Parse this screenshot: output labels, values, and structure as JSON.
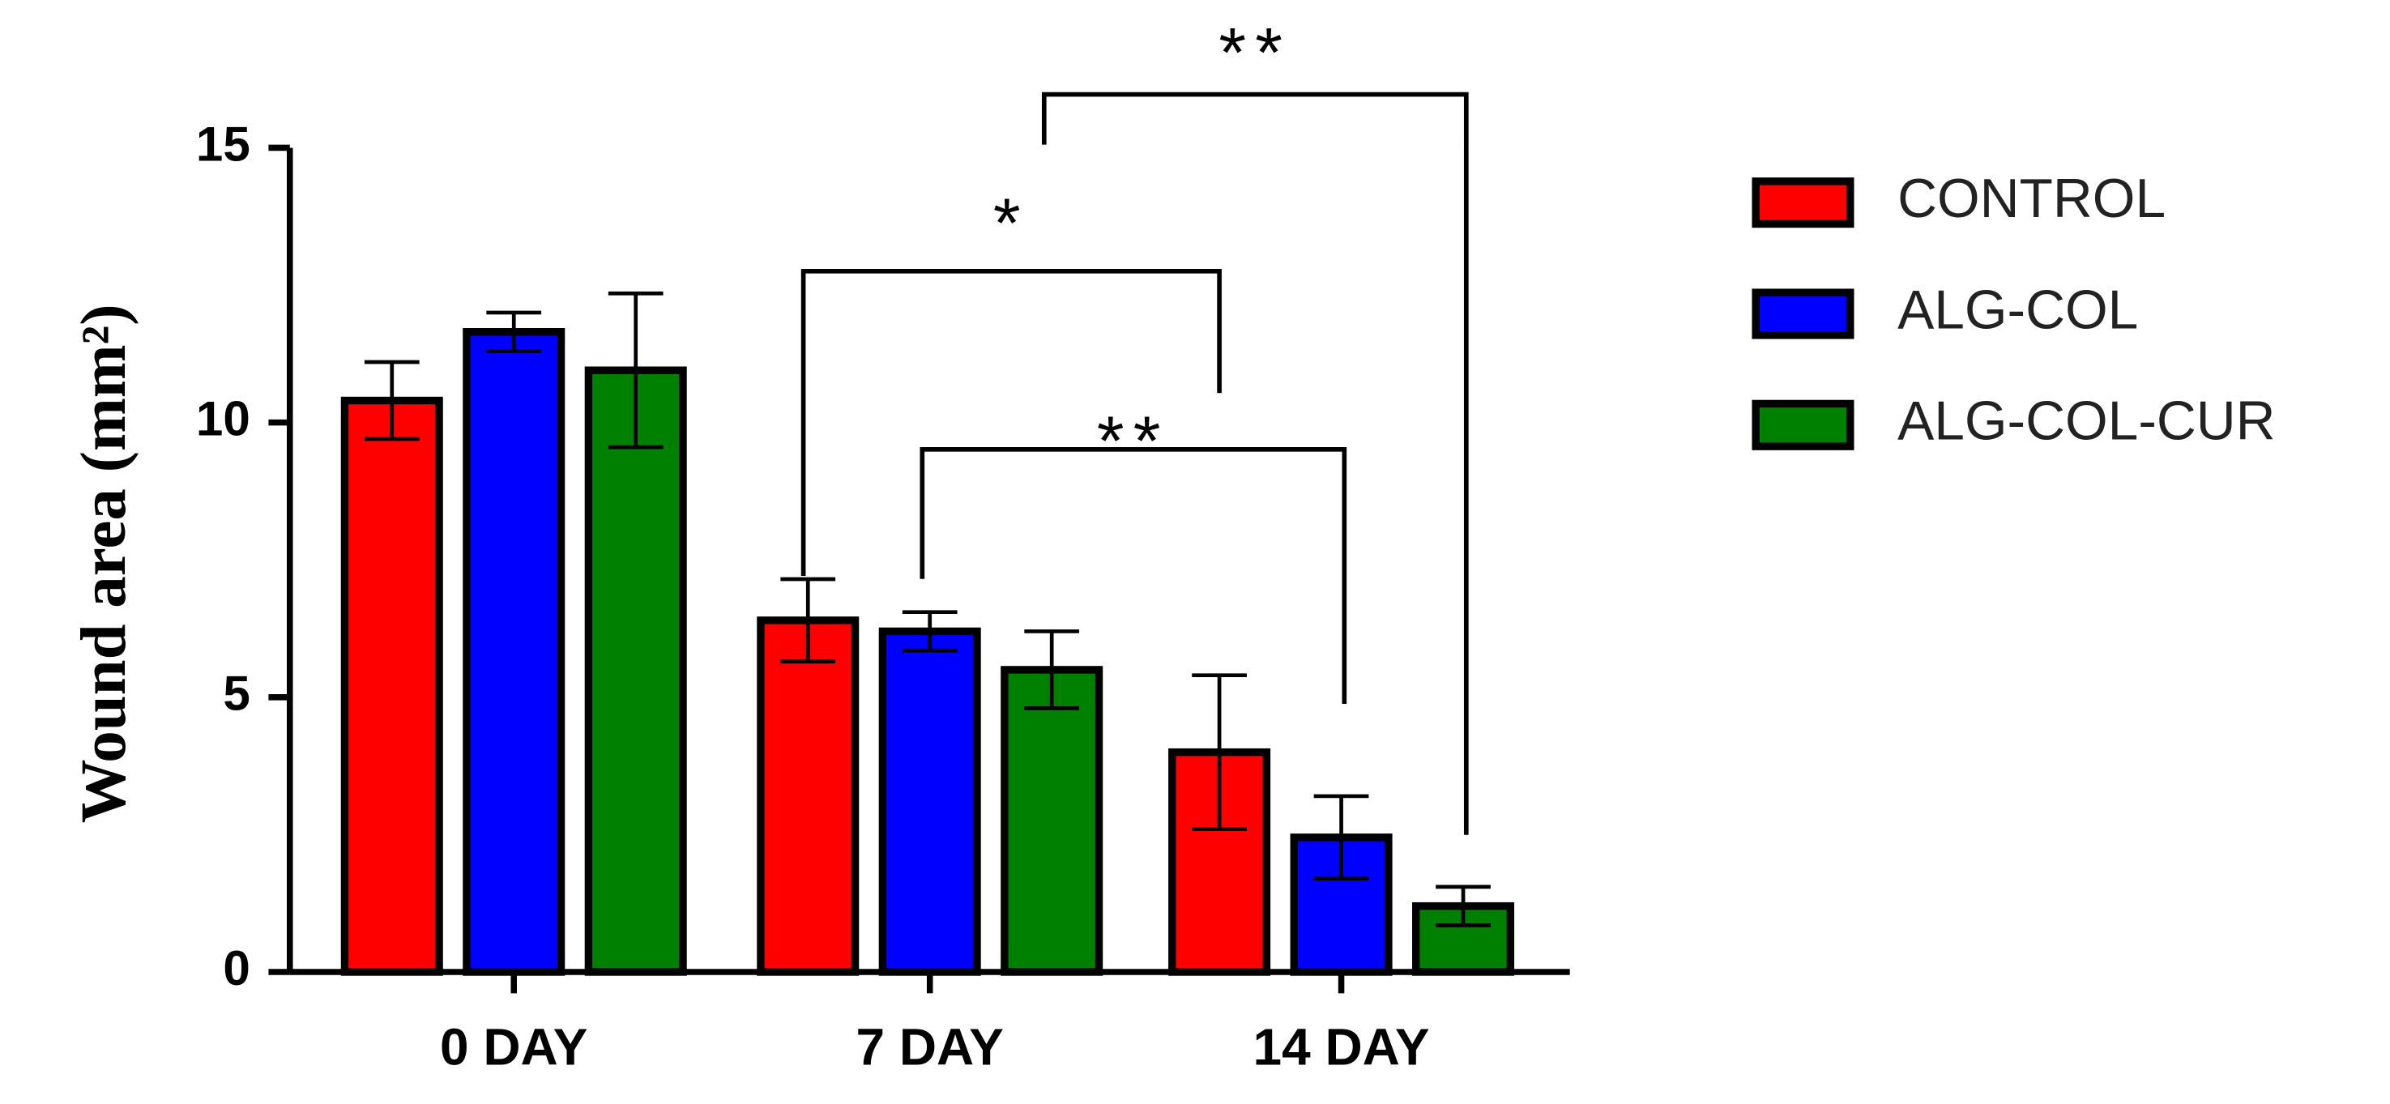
{
  "chart_data": {
    "type": "bar",
    "y_label": "Wound area (mm²)",
    "categories": [
      "0 DAY",
      "7 DAY",
      "14 DAY"
    ],
    "series": [
      {
        "name": "CONTROL",
        "color": "#ff0000",
        "values": [
          10.4,
          6.4,
          4.0
        ],
        "errors": [
          0.7,
          0.75,
          1.4
        ]
      },
      {
        "name": "ALG-COL",
        "color": "#0000ff",
        "values": [
          11.65,
          6.2,
          2.45
        ],
        "errors": [
          0.35,
          0.35,
          0.75
        ]
      },
      {
        "name": "ALG-COL-CUR",
        "color": "#008000",
        "values": [
          10.95,
          5.5,
          1.2
        ],
        "errors": [
          1.4,
          0.7,
          0.35
        ]
      }
    ],
    "ylim": [
      0,
      15
    ],
    "yticks": [
      0,
      5,
      10,
      15
    ],
    "annotations": [
      "*",
      "**",
      "**"
    ],
    "legend": "right"
  }
}
